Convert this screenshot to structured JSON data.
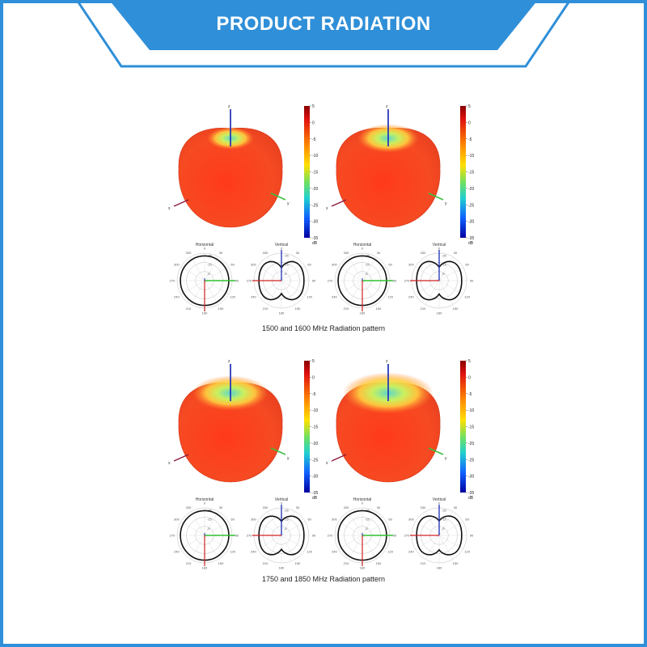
{
  "header": {
    "title": "PRODUCT RADIATION",
    "accent": "#2f8fd8"
  },
  "colorbar": {
    "ticks": [
      "5",
      "0",
      "-5",
      "-10",
      "-15",
      "-20",
      "-25",
      "-30",
      "-35"
    ],
    "unit": "dB"
  },
  "axes": {
    "x": "x",
    "y": "y",
    "z": "z"
  },
  "polar": {
    "horizontal_title": "Horizontal",
    "vertical_title": "Vertical",
    "horizontal_ticks": [
      "0",
      "30",
      "60",
      "90",
      "120",
      "150",
      "180",
      "210",
      "240",
      "270",
      "300",
      "330"
    ],
    "vertical_ticks": [
      "0",
      "30",
      "60",
      "90",
      "120",
      "150",
      "180",
      "210",
      "240",
      "270",
      "300",
      "330"
    ],
    "rings": [
      "-5",
      "-15",
      "-25"
    ]
  },
  "sections": [
    {
      "caption": "1500 and 1600 MHz Radiation pattern",
      "plots": [
        {
          "top_cool": 0.15
        },
        {
          "top_cool": 0.3
        }
      ]
    },
    {
      "caption": "1750 and 1850 MHz Radiation pattern",
      "plots": [
        {
          "top_cool": 0.45
        },
        {
          "top_cool": 0.6
        }
      ]
    }
  ]
}
